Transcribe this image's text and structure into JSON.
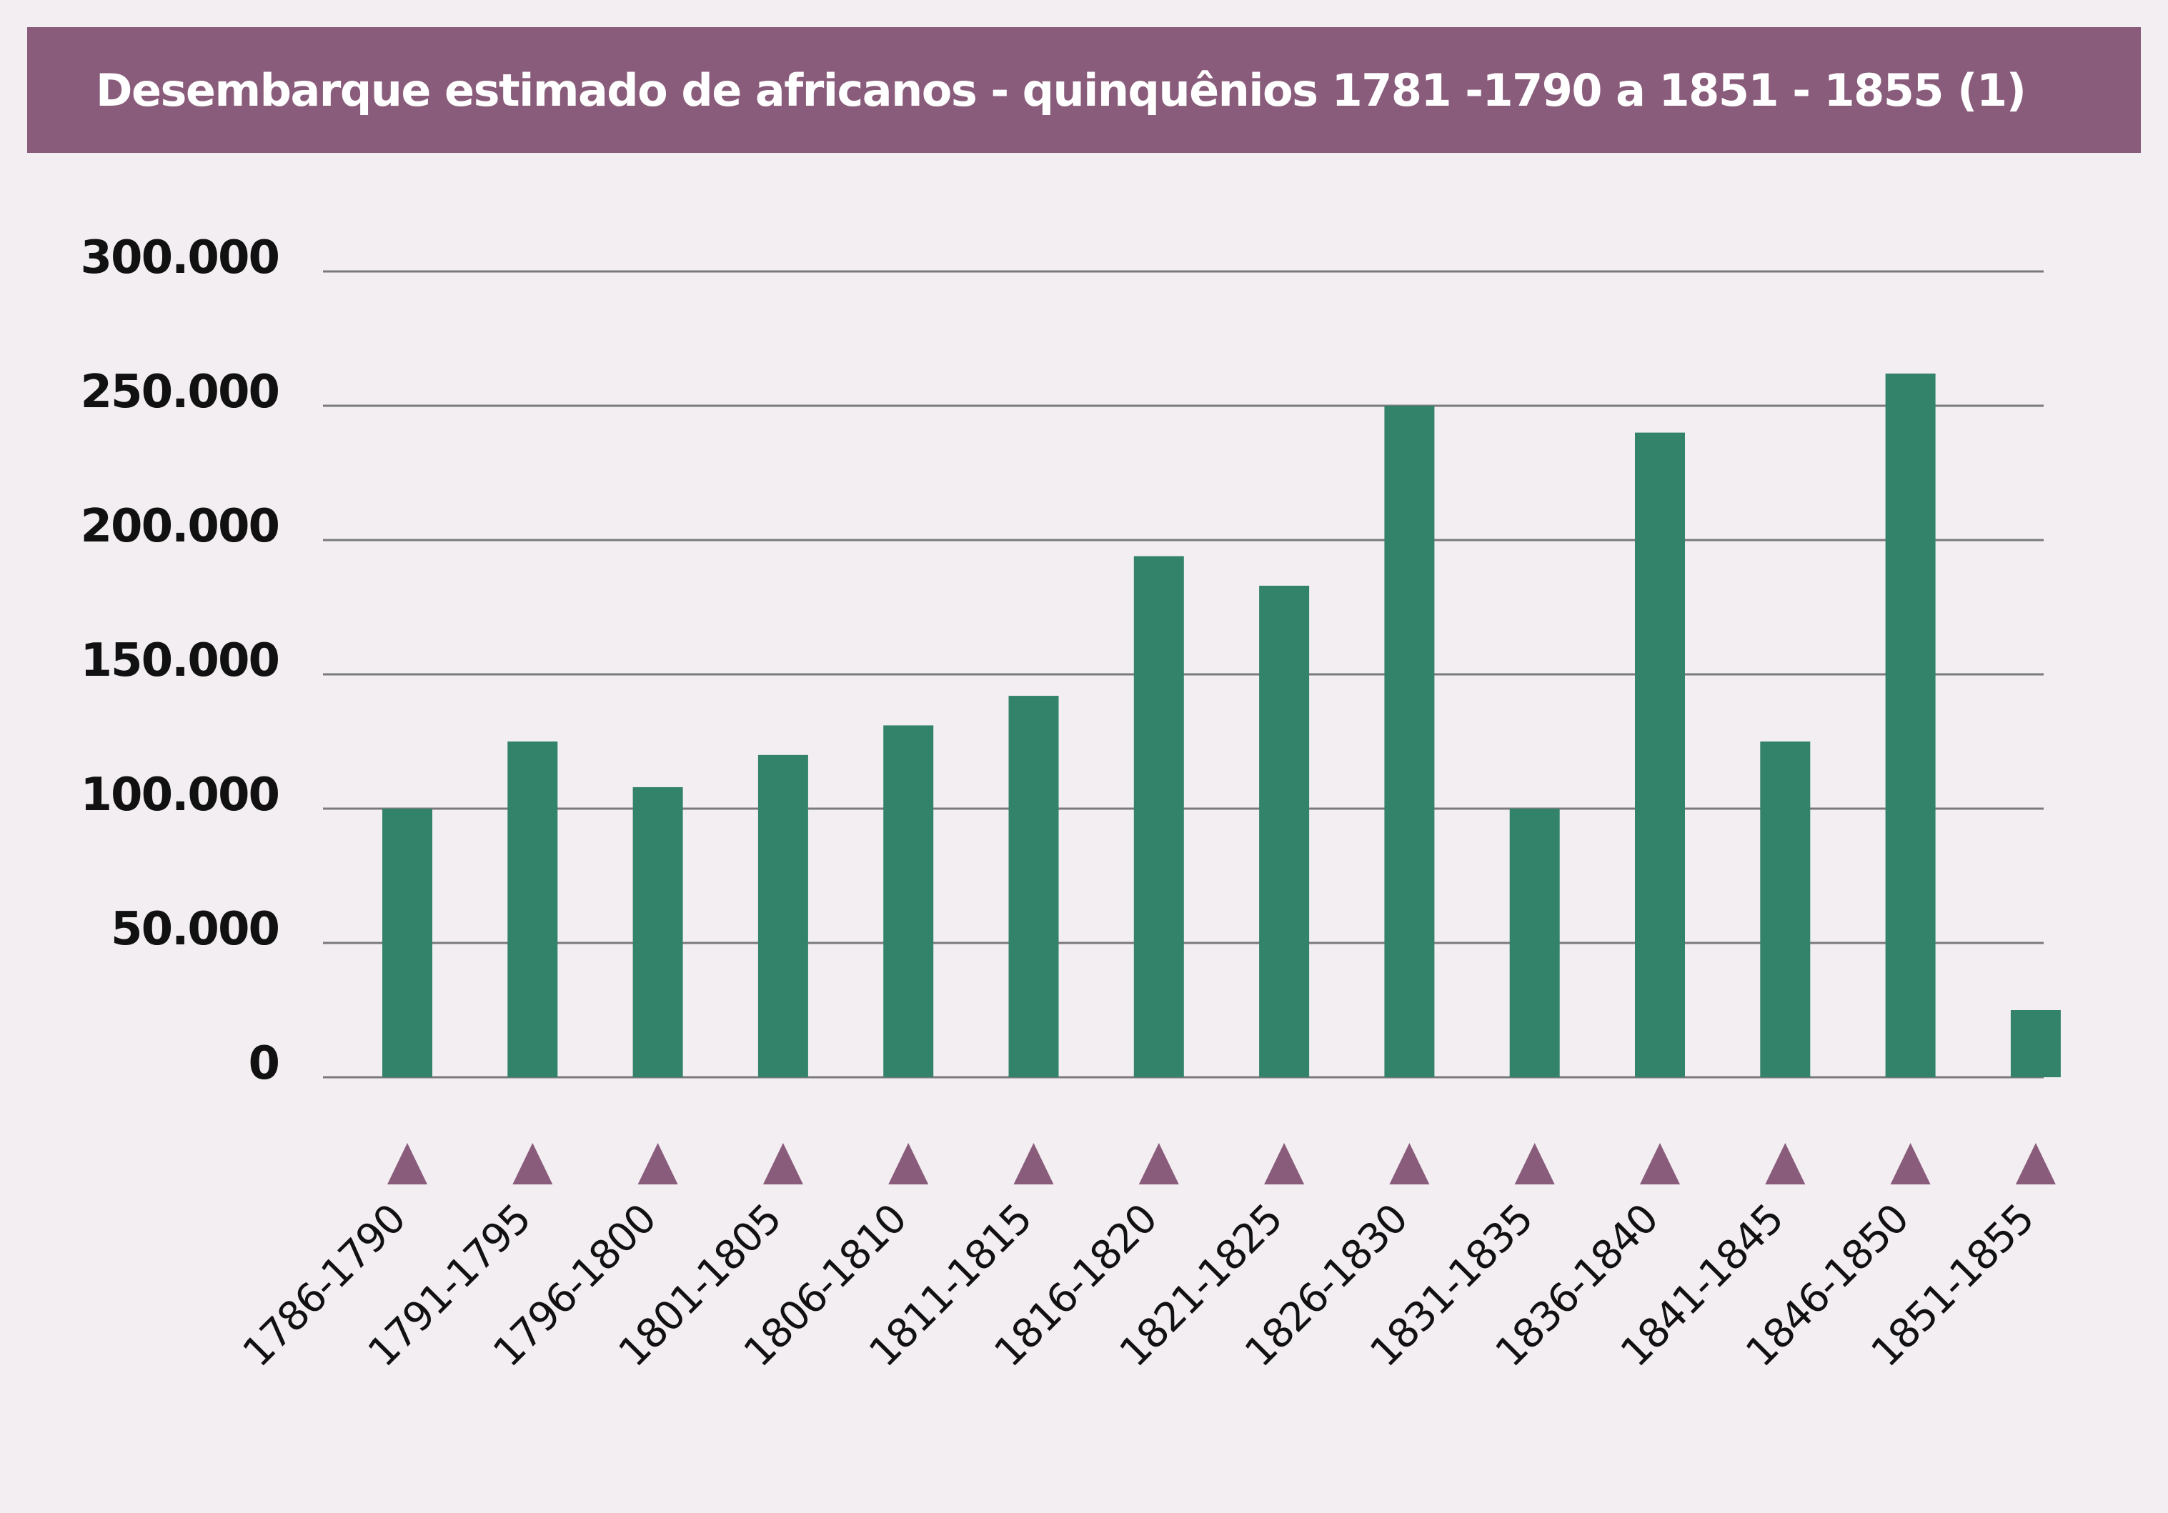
{
  "title": "Desembarque estimado de africanos - quinquênios 1781 -1790 a 1851 - 1855 (1)",
  "colors": {
    "background": "#f3eef2",
    "title_bar": "#8a5c7b",
    "bar": "#33836a",
    "marker": "#8a5c7b",
    "grid": "#7a7a7a"
  },
  "chart_data": {
    "type": "bar",
    "title": "Desembarque estimado de africanos - quinquênios 1781 -1790 a 1851 - 1855 (1)",
    "xlabel": "",
    "ylabel": "",
    "ylim": [
      0,
      300000
    ],
    "grid": true,
    "y_ticks": [
      {
        "value": 0,
        "label": "0"
      },
      {
        "value": 50000,
        "label": "50.000"
      },
      {
        "value": 100000,
        "label": "100.000"
      },
      {
        "value": 150000,
        "label": "150.000"
      },
      {
        "value": 200000,
        "label": "200.000"
      },
      {
        "value": 250000,
        "label": "250.000"
      },
      {
        "value": 300000,
        "label": "300.000"
      }
    ],
    "categories": [
      "1786-1790",
      "1791-1795",
      "1796-1800",
      "1801-1805",
      "1806-1810",
      "1811-1815",
      "1816-1820",
      "1821-1825",
      "1826-1830",
      "1831-1835",
      "1836-1840",
      "1841-1845",
      "1846-1850",
      "1851-1855"
    ],
    "values": [
      100000,
      125000,
      108000,
      120000,
      131000,
      142000,
      194000,
      183000,
      250000,
      100000,
      240000,
      125000,
      262000,
      25000
    ]
  }
}
